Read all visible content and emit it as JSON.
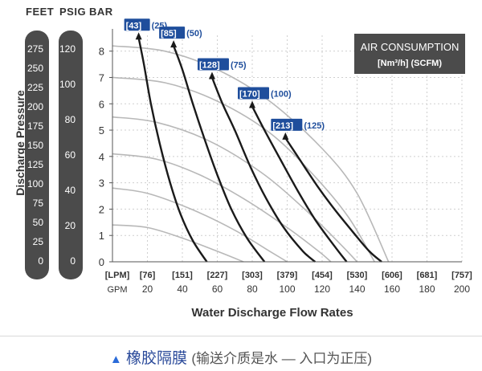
{
  "header": {
    "feet": "FEET",
    "psig": "PSIG",
    "bar": "BAR"
  },
  "y_axis_title": "Discharge Pressure",
  "feet_scale": [
    "275",
    "250",
    "225",
    "200",
    "175",
    "150",
    "125",
    "100",
    "75",
    "50",
    "25",
    "0"
  ],
  "psig_scale": [
    "120",
    "100",
    "80",
    "60",
    "40",
    "20",
    "0"
  ],
  "legend": {
    "title": "AIR CONSUMPTION",
    "subtitle": "[Nm³/h] (SCFM)"
  },
  "caption": {
    "main": "橡胶隔膜",
    "sub": "(输送介质是水 — 入口为正压)"
  },
  "colors": {
    "label_fill": "#1f4e9c",
    "legend_bg": "#4b4b4b",
    "curve": "#1a1a1a",
    "air_curve": "#b8b8b8"
  },
  "chart_data": {
    "type": "line",
    "title": "",
    "xlabel": "Water Discharge Flow Rates",
    "ylabel": "Discharge Pressure",
    "xlim": [
      0,
      200
    ],
    "ylim": [
      0,
      8.6
    ],
    "x_units_top": "[LPM]",
    "x_units_bottom": "GPM",
    "x_ticks_gpm": [
      20,
      40,
      60,
      80,
      100,
      120,
      140,
      160,
      180,
      200
    ],
    "x_ticks_lpm": [
      "[76]",
      "[151]",
      "[227]",
      "[303]",
      "[379]",
      "[454]",
      "[530]",
      "[606]",
      "[681]",
      "[757]"
    ],
    "y_ticks_bar": [
      0,
      1,
      2,
      3,
      4,
      5,
      6,
      7,
      8
    ],
    "series": [
      {
        "name": "[43] (25)",
        "points": [
          [
            15,
            8.5
          ],
          [
            18,
            7.5
          ],
          [
            22,
            6.0
          ],
          [
            27,
            4.5
          ],
          [
            33,
            3.0
          ],
          [
            39,
            1.8
          ],
          [
            46,
            0.8
          ],
          [
            54,
            0.0
          ]
        ]
      },
      {
        "name": "[85] (50)",
        "points": [
          [
            35,
            8.2
          ],
          [
            40,
            7.3
          ],
          [
            46,
            6.0
          ],
          [
            53,
            4.6
          ],
          [
            60,
            3.3
          ],
          [
            68,
            2.0
          ],
          [
            77,
            0.9
          ],
          [
            87,
            0.0
          ]
        ]
      },
      {
        "name": "[128] (75)",
        "points": [
          [
            57,
            7.0
          ],
          [
            63,
            6.0
          ],
          [
            70,
            5.0
          ],
          [
            79,
            3.6
          ],
          [
            88,
            2.4
          ],
          [
            98,
            1.3
          ],
          [
            109,
            0.4
          ],
          [
            116,
            0.0
          ]
        ]
      },
      {
        "name": "[170] (100)",
        "points": [
          [
            80,
            5.9
          ],
          [
            87,
            5.0
          ],
          [
            96,
            3.9
          ],
          [
            106,
            2.7
          ],
          [
            116,
            1.6
          ],
          [
            127,
            0.6
          ],
          [
            134,
            0.0
          ]
        ]
      },
      {
        "name": "[213] (125)",
        "points": [
          [
            99,
            4.7
          ],
          [
            107,
            3.9
          ],
          [
            117,
            2.9
          ],
          [
            127,
            2.0
          ],
          [
            138,
            1.1
          ],
          [
            147,
            0.4
          ],
          [
            154,
            0.0
          ]
        ]
      }
    ],
    "air_curves": [
      [
        [
          0,
          8.2
        ],
        [
          30,
          8.0
        ],
        [
          60,
          7.3
        ],
        [
          90,
          6.1
        ],
        [
          120,
          4.3
        ],
        [
          140,
          2.6
        ],
        [
          158,
          0.0
        ]
      ],
      [
        [
          0,
          7.0
        ],
        [
          30,
          6.8
        ],
        [
          60,
          6.1
        ],
        [
          90,
          4.9
        ],
        [
          115,
          3.3
        ],
        [
          135,
          1.7
        ],
        [
          150,
          0.0
        ]
      ],
      [
        [
          0,
          5.5
        ],
        [
          25,
          5.3
        ],
        [
          55,
          4.6
        ],
        [
          85,
          3.4
        ],
        [
          110,
          2.0
        ],
        [
          130,
          0.7
        ],
        [
          140,
          0.0
        ]
      ],
      [
        [
          0,
          4.1
        ],
        [
          25,
          3.9
        ],
        [
          50,
          3.3
        ],
        [
          75,
          2.4
        ],
        [
          100,
          1.3
        ],
        [
          118,
          0.4
        ],
        [
          125,
          0.0
        ]
      ],
      [
        [
          0,
          2.8
        ],
        [
          20,
          2.6
        ],
        [
          45,
          2.0
        ],
        [
          70,
          1.2
        ],
        [
          90,
          0.4
        ],
        [
          100,
          0.0
        ]
      ],
      [
        [
          0,
          1.4
        ],
        [
          20,
          1.3
        ],
        [
          40,
          0.9
        ],
        [
          60,
          0.4
        ],
        [
          75,
          0.0
        ]
      ]
    ]
  }
}
